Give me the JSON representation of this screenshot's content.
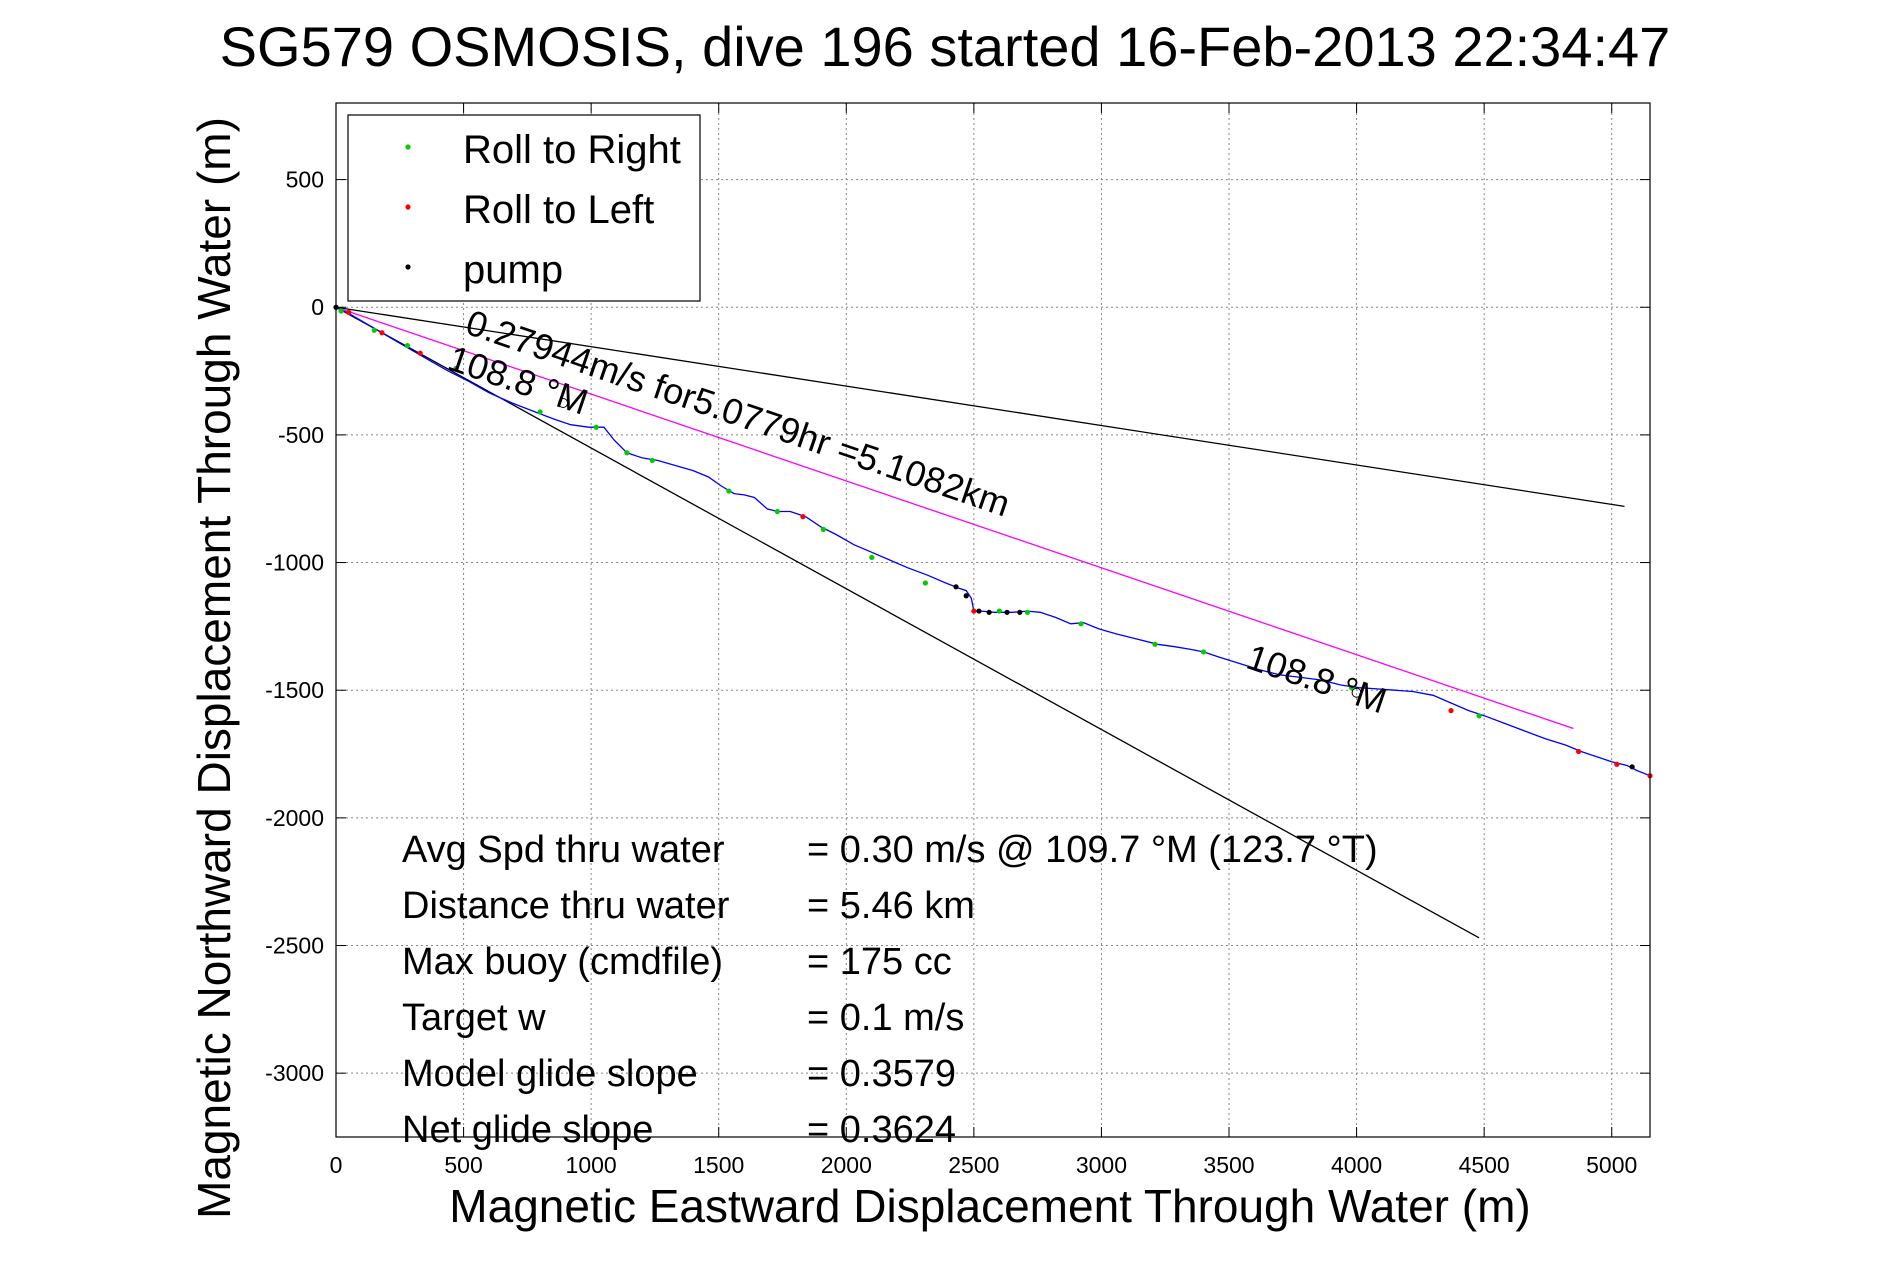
{
  "chart_data": {
    "type": "line",
    "title": "SG579 OSMOSIS, dive 196 started 16-Feb-2013 22:34:47",
    "xlabel": "Magnetic Eastward Displacement Through Water (m)",
    "ylabel": "Magnetic Northward Displacement Through Water (m)",
    "xlim": [
      0,
      5150
    ],
    "ylim": [
      -3250,
      800
    ],
    "xticks": [
      0,
      500,
      1000,
      1500,
      2000,
      2500,
      3000,
      3500,
      4000,
      4500,
      5000
    ],
    "yticks": [
      500,
      0,
      -500,
      -1000,
      -1500,
      -2000,
      -2500,
      -3000
    ],
    "grid": true,
    "legend_position": "top-left",
    "legend": [
      {
        "label": "Roll to Right",
        "color": "#00cc00"
      },
      {
        "label": "Roll to Left",
        "color": "#ff0000"
      },
      {
        "label": "pump",
        "color": "#000000"
      }
    ],
    "track": {
      "color": "#0000ff",
      "x": [
        0,
        60,
        120,
        180,
        240,
        300,
        370,
        440,
        520,
        600,
        690,
        780,
        860,
        920,
        990,
        1050,
        1090,
        1140,
        1200,
        1260,
        1330,
        1400,
        1460,
        1510,
        1560,
        1600,
        1640,
        1690,
        1730,
        1780,
        1840,
        1900,
        1960,
        2030,
        2100,
        2170,
        2240,
        2320,
        2390,
        2440,
        2470,
        2490,
        2500,
        2530,
        2580,
        2650,
        2710,
        2760,
        2820,
        2880,
        2930,
        2990,
        3060,
        3140,
        3220,
        3290,
        3350,
        3400,
        3460,
        3540,
        3620,
        3700,
        3780,
        3860,
        3940,
        4010,
        4080,
        4150,
        4220,
        4300,
        4370,
        4440,
        4500,
        4580,
        4660,
        4740,
        4820,
        4880,
        4940,
        5000,
        5060,
        5100,
        5150
      ],
      "y": [
        0,
        -30,
        -65,
        -100,
        -135,
        -170,
        -210,
        -250,
        -290,
        -335,
        -375,
        -410,
        -440,
        -460,
        -470,
        -470,
        -520,
        -570,
        -590,
        -600,
        -620,
        -640,
        -665,
        -700,
        -730,
        -735,
        -745,
        -790,
        -800,
        -800,
        -820,
        -860,
        -890,
        -930,
        -960,
        -990,
        -1020,
        -1050,
        -1080,
        -1100,
        -1110,
        -1140,
        -1190,
        -1190,
        -1195,
        -1195,
        -1190,
        -1195,
        -1215,
        -1240,
        -1235,
        -1260,
        -1280,
        -1300,
        -1320,
        -1330,
        -1340,
        -1350,
        -1370,
        -1395,
        -1420,
        -1440,
        -1450,
        -1460,
        -1480,
        -1490,
        -1495,
        -1500,
        -1505,
        -1520,
        -1550,
        -1580,
        -1600,
        -1630,
        -1660,
        -1690,
        -1715,
        -1740,
        -1760,
        -1780,
        -1795,
        -1815,
        -1835
      ]
    },
    "roll_right": {
      "x": [
        20,
        150,
        280,
        470,
        800,
        1020,
        1140,
        1240,
        1540,
        1730,
        1910,
        2100,
        2310,
        2600,
        2710,
        2920,
        3210,
        3400,
        3980,
        4480
      ],
      "y": [
        -15,
        -90,
        -150,
        -240,
        -410,
        -470,
        -570,
        -600,
        -720,
        -800,
        -870,
        -980,
        -1080,
        -1190,
        -1195,
        -1240,
        -1320,
        -1350,
        -1490,
        -1600
      ]
    },
    "roll_left": {
      "x": [
        50,
        180,
        330,
        1830,
        2500,
        4370,
        4870,
        5020,
        5150
      ],
      "y": [
        -20,
        -100,
        -180,
        -820,
        -1190,
        -1580,
        -1740,
        -1790,
        -1835
      ]
    },
    "pump": {
      "x": [
        0,
        2430,
        2470,
        2520,
        2560,
        2630,
        2680,
        5080
      ],
      "y": [
        0,
        -1095,
        -1130,
        -1190,
        -1195,
        -1195,
        -1195,
        -1800
      ]
    },
    "reference_lines": [
      {
        "name": "heading-line-upper",
        "color": "#000000",
        "x": [
          0,
          5050
        ],
        "y": [
          0,
          -780
        ]
      },
      {
        "name": "heading-line-lower",
        "color": "#000000",
        "x": [
          0,
          4480
        ],
        "y": [
          0,
          -2470
        ]
      },
      {
        "name": "net-displacement-line",
        "color": "#ff00ff",
        "x": [
          0,
          4850
        ],
        "y": [
          0,
          -1650
        ]
      }
    ],
    "annotations": [
      {
        "text": "0.27944m/s for5.0779hr =5.1082km",
        "x": 500,
        "y": -100,
        "angle": 18.8
      },
      {
        "text": "108.8 °M",
        "x": 430,
        "y": -240,
        "angle": 18.8
      },
      {
        "text": "108.8 °M",
        "x": 3560,
        "y": -1410,
        "angle": 18.8
      }
    ],
    "heading_markers": [
      {
        "x": 890,
        "y": -375
      },
      {
        "x": 4000,
        "y": -1510
      }
    ],
    "stats": [
      {
        "label": "Avg Spd thru water",
        "value": "=  0.30 m/s @ 109.7 °M (123.7 °T)"
      },
      {
        "label": "Distance thru water",
        "value": "=  5.46 km"
      },
      {
        "label": "Max buoy (cmdfile)",
        "value": "= 175 cc"
      },
      {
        "label": "Target w",
        "value": "= 0.1 m/s"
      },
      {
        "label": "Model glide slope",
        "value": "= 0.3579"
      },
      {
        "label": "Net glide slope",
        "value": "= 0.3624"
      }
    ]
  }
}
